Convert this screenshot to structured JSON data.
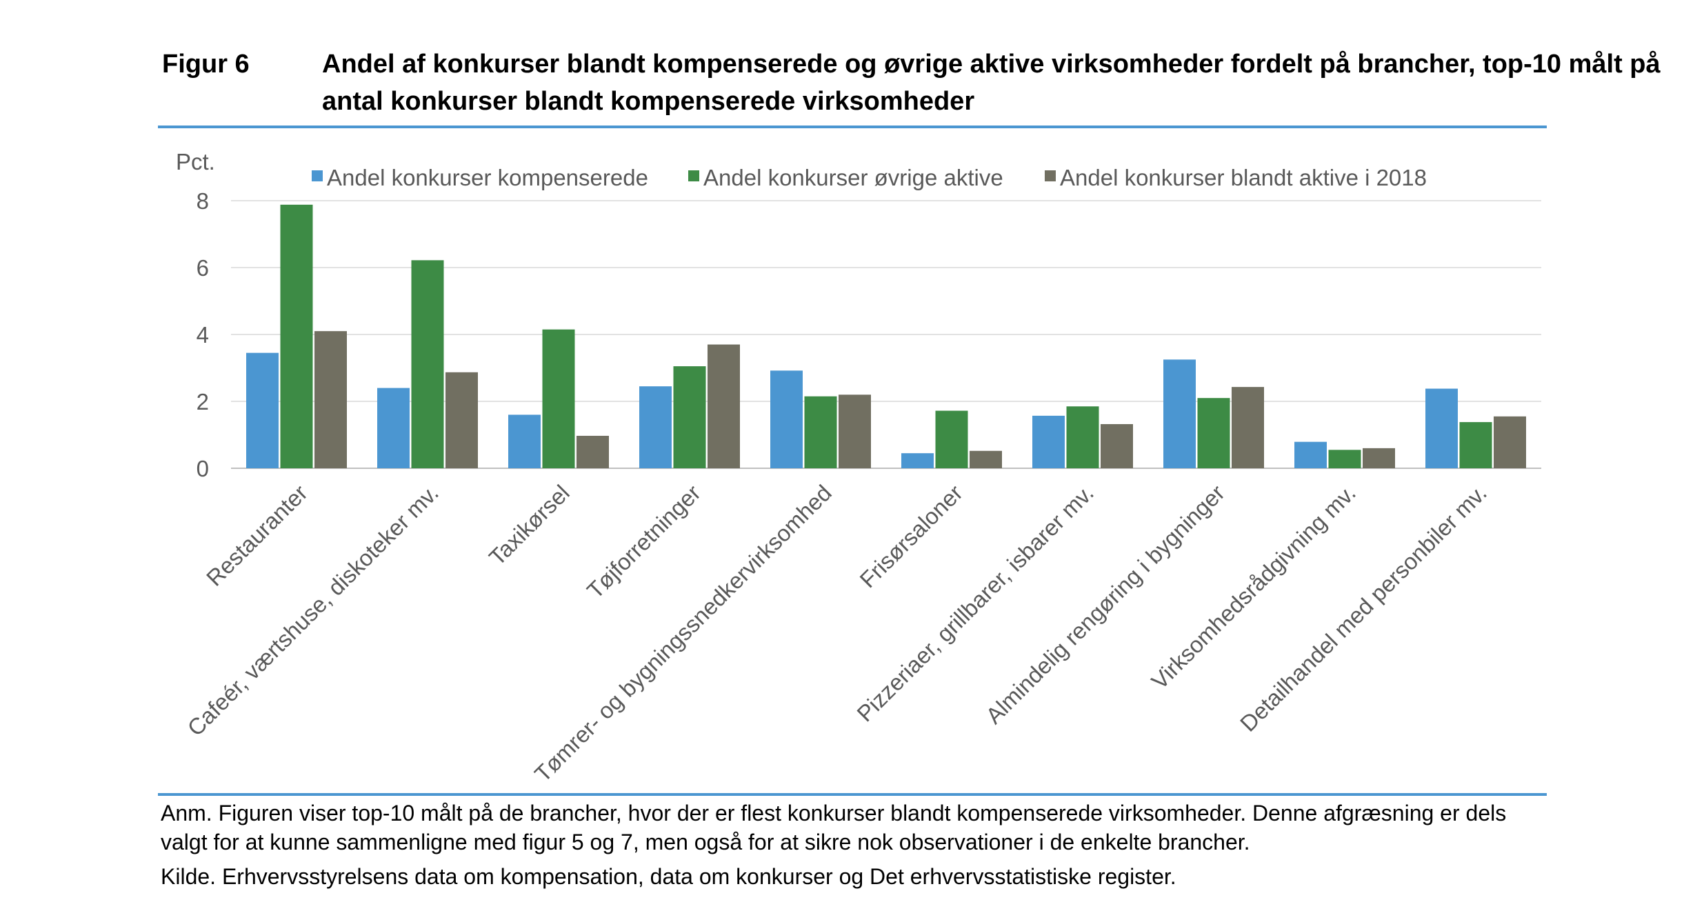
{
  "figure": {
    "label": "Figur 6",
    "title": "Andel af konkurser blandt kompenserede og øvrige aktive virksomheder fordelt på brancher, top-10 målt på antal konkurser blandt kompenserede virksomheder"
  },
  "chart_data": {
    "type": "bar",
    "ylabel": "Pct.",
    "ylim": [
      0,
      8
    ],
    "yticks": [
      0,
      2,
      4,
      6,
      8
    ],
    "grid": true,
    "legend_position": "top",
    "categories": [
      "Restauranter",
      "Cafeér, værtshuse, diskoteker mv.",
      "Taxikørsel",
      "Tøjforretninger",
      "Tømrer- og bygningssnedkervirksomhed",
      "Frisørsaloner",
      "Pizzeriaer, grillbarer, isbarer mv.",
      "Almindelig rengøring i bygninger",
      "Virksomhedsrådgivning mv.",
      "Detailhandel med personbiler mv."
    ],
    "series": [
      {
        "name": "Andel konkurser kompenserede",
        "color": "#4b96d1",
        "values": [
          3.45,
          2.4,
          1.6,
          2.45,
          2.92,
          0.45,
          1.57,
          3.25,
          0.79,
          2.38
        ]
      },
      {
        "name": "Andel konkurser øvrige aktive",
        "color": "#3d8b45",
        "values": [
          7.88,
          6.22,
          4.15,
          3.05,
          2.15,
          1.72,
          1.85,
          2.1,
          0.55,
          1.38
        ]
      },
      {
        "name": "Andel konkurser blandt aktive i 2018",
        "color": "#716f61",
        "values": [
          4.1,
          2.87,
          0.97,
          3.7,
          2.2,
          0.52,
          1.32,
          2.43,
          0.6,
          1.55
        ]
      }
    ]
  },
  "notes": {
    "anm": "Anm. Figuren viser top-10 målt på de brancher, hvor der er flest konkurser blandt kompenserede virksomheder. Denne afgræsning er dels valgt for at kunne sammenligne med figur 5 og 7, men også for at sikre nok observationer i de enkelte brancher.",
    "kilde": "Kilde. Erhvervsstyrelsens data om kompensation, data om konkurser og Det erhvervsstatistiske register."
  }
}
